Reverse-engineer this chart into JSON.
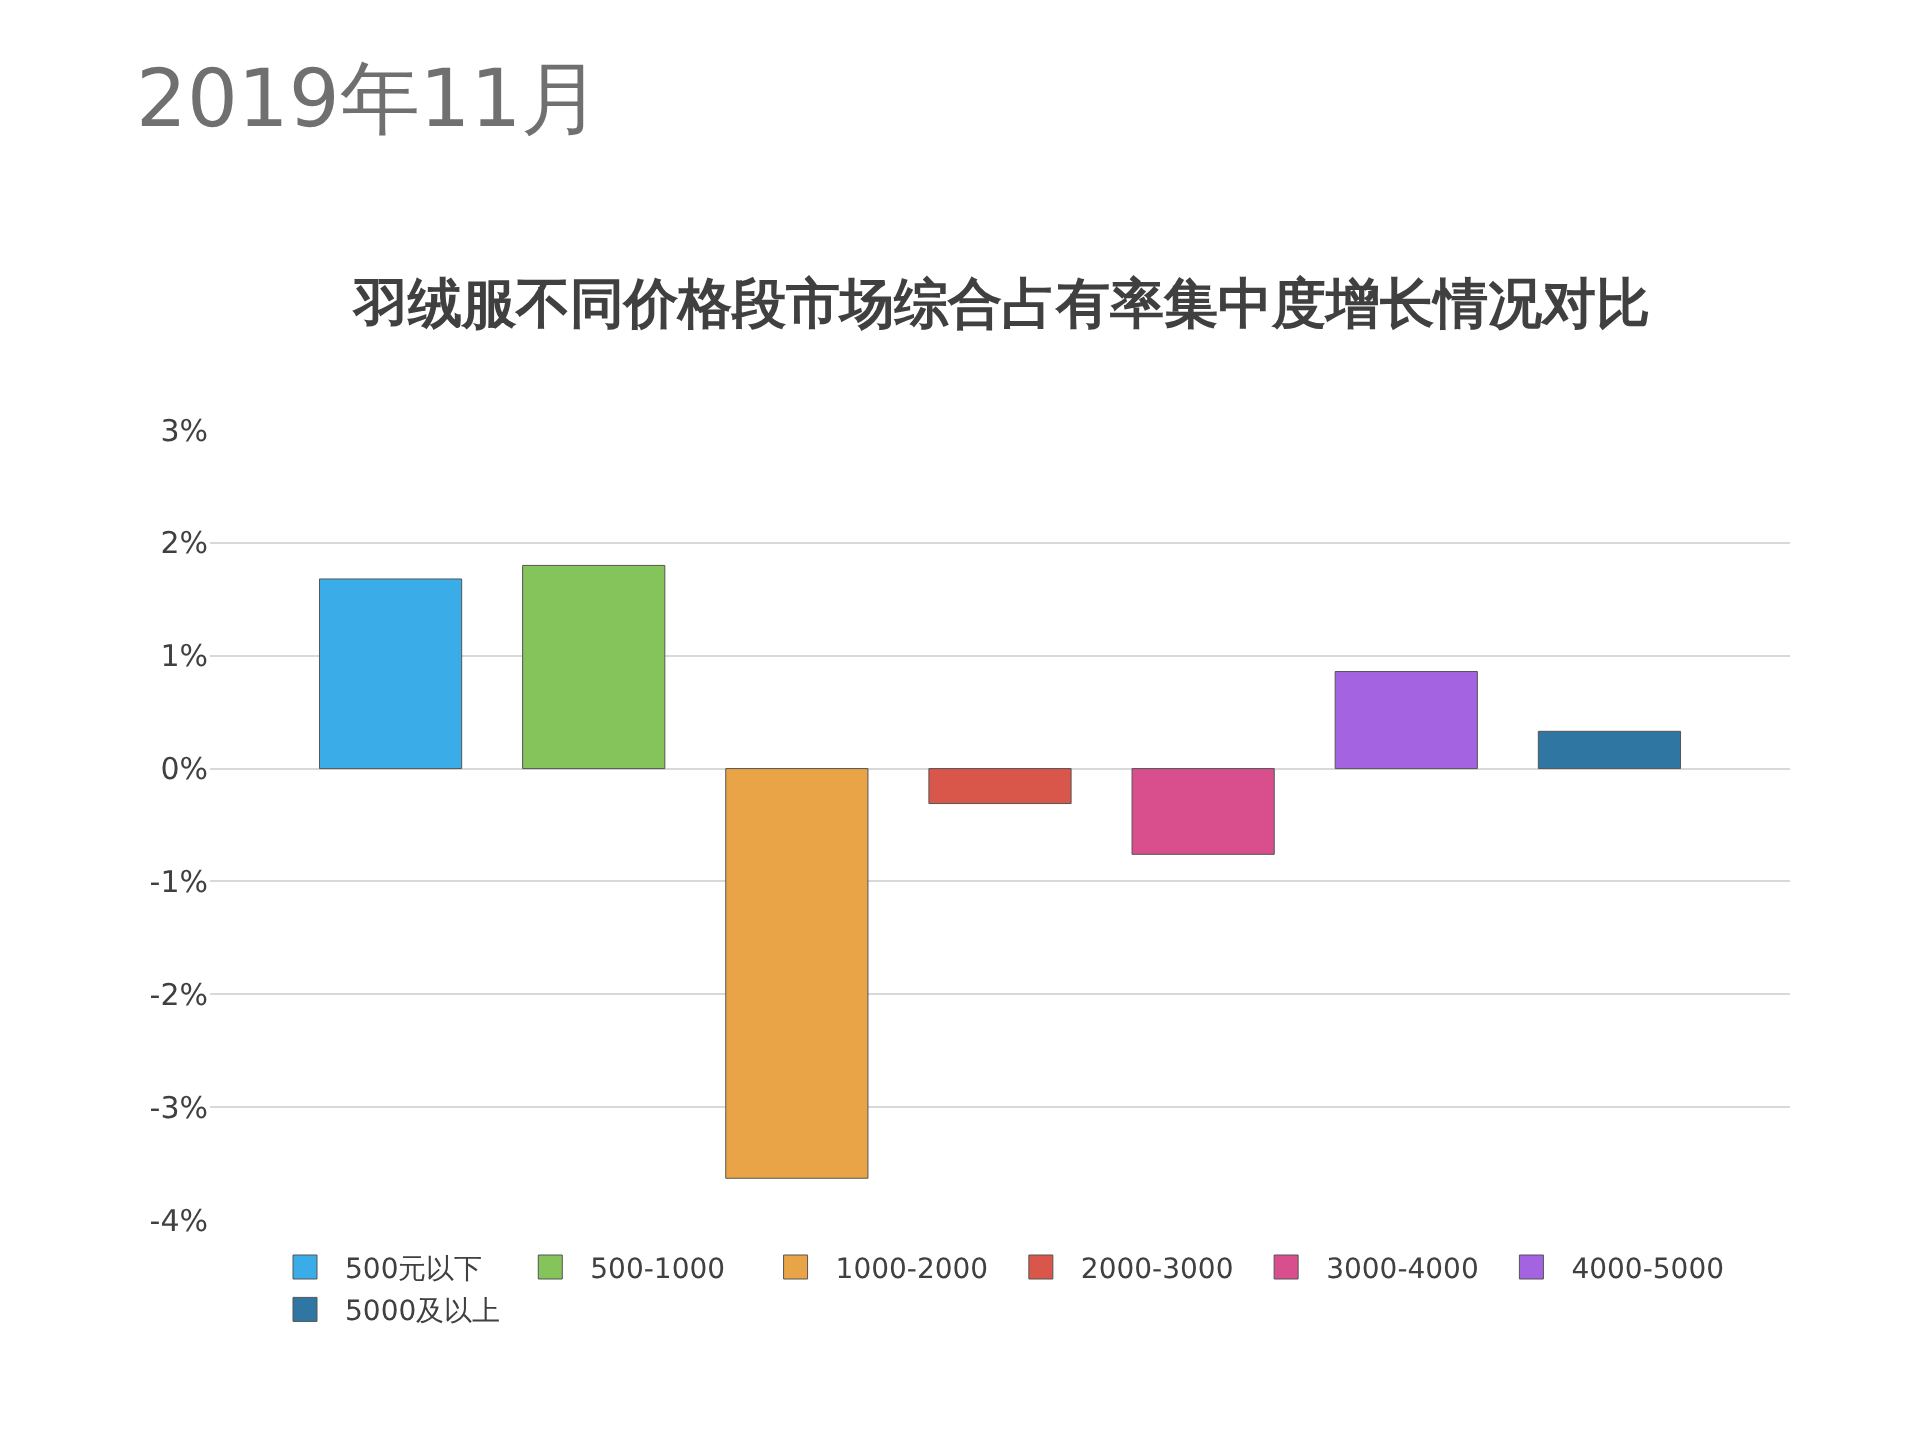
{
  "chart_data": {
    "type": "bar",
    "subtitle": "2019年11月",
    "title": "羽绒服不同价格段市场综合占有率集中度增长情况对比",
    "categories": [
      null
    ],
    "series": [
      {
        "name": "500元以下",
        "color": "#3aade9",
        "values": [
          1.68
        ]
      },
      {
        "name": "500-1000",
        "color": "#84c45a",
        "values": [
          1.8
        ]
      },
      {
        "name": "1000-2000",
        "color": "#e9a448",
        "values": [
          -3.63
        ]
      },
      {
        "name": "2000-3000",
        "color": "#d9564a",
        "values": [
          -0.31
        ]
      },
      {
        "name": "3000-4000",
        "color": "#d94f8e",
        "values": [
          -0.76
        ]
      },
      {
        "name": "4000-5000",
        "color": "#a463e0",
        "values": [
          0.86
        ]
      },
      {
        "name": "5000及以上",
        "color": "#2f77a2",
        "values": [
          0.33
        ]
      }
    ],
    "ylim": [
      -4,
      3
    ],
    "yticks": [
      {
        "value": -4,
        "label": "-4%"
      },
      {
        "value": -3,
        "label": "-3%"
      },
      {
        "value": -2,
        "label": "-2%"
      },
      {
        "value": -1,
        "label": "-1%"
      },
      {
        "value": 0,
        "label": "0%"
      },
      {
        "value": 1,
        "label": "1%"
      },
      {
        "value": 2,
        "label": "2%"
      },
      {
        "value": 3,
        "label": "3%"
      }
    ],
    "grid": "y",
    "legend": "bottom"
  }
}
